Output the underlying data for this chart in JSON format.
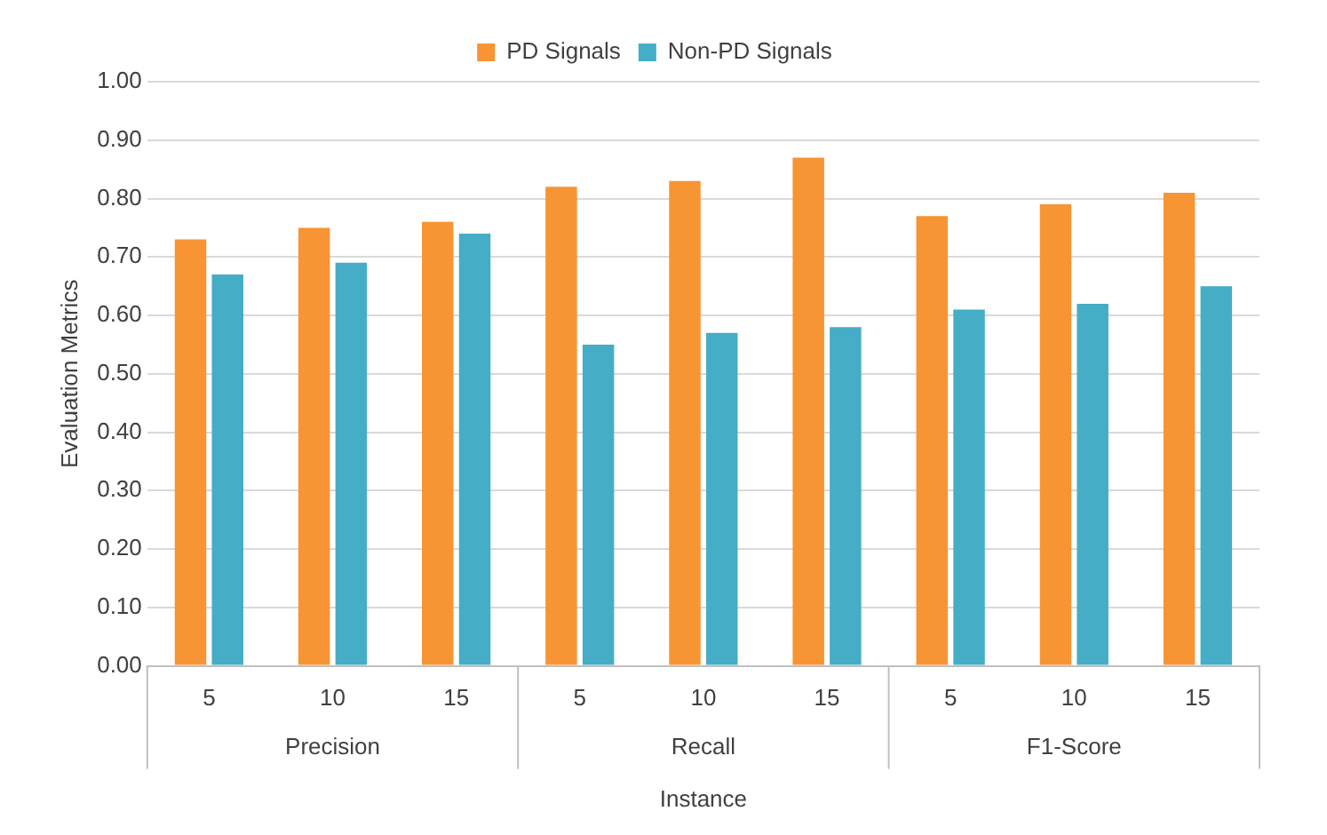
{
  "chart_data": {
    "type": "bar",
    "xlabel": "Instance",
    "ylabel": "Evaluation Metrics",
    "categories": [
      "5",
      "10",
      "15",
      "5",
      "10",
      "15",
      "5",
      "10",
      "15"
    ],
    "annotations": [
      "Precision",
      "Recall",
      "F1-Score"
    ],
    "series": [
      {
        "name": "PD Signals",
        "color": "#f79433",
        "values": [
          0.73,
          0.75,
          0.76,
          0.82,
          0.83,
          0.87,
          0.77,
          0.79,
          0.81
        ]
      },
      {
        "name": "Non-PD Signals",
        "color": "#45adc6",
        "values": [
          0.67,
          0.69,
          0.74,
          0.55,
          0.57,
          0.58,
          0.61,
          0.62,
          0.65
        ]
      }
    ],
    "ylim": [
      0,
      1
    ],
    "yticks": [
      {
        "value": 0,
        "label": "0.00"
      },
      {
        "value": 0.1,
        "label": "0.10"
      },
      {
        "value": 0.2,
        "label": "0.20"
      },
      {
        "value": 0.3,
        "label": "0.30"
      },
      {
        "value": 0.4,
        "label": "0.40"
      },
      {
        "value": 0.5,
        "label": "0.50"
      },
      {
        "value": 0.6,
        "label": "0.60"
      },
      {
        "value": 0.7,
        "label": "0.70"
      },
      {
        "value": 0.8,
        "label": "0.80"
      },
      {
        "value": 0.9,
        "label": "0.90"
      },
      {
        "value": 1,
        "label": "1.00"
      }
    ],
    "grid": "y",
    "legend": "top"
  }
}
